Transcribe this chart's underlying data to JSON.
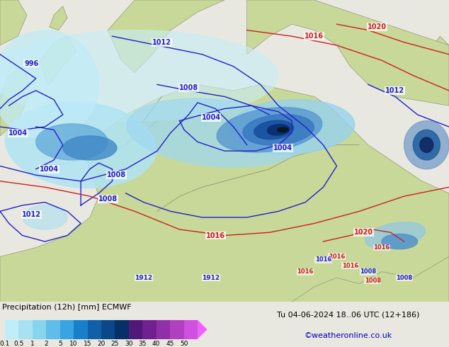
{
  "title_left": "Precipitation (12h) [mm] ECMWF",
  "title_right_line1": "Tu 04-06-2024 18..06 UTC (12+186)",
  "title_right_line2": "©weatheronline.co.uk",
  "colorbar_levels": [
    0.1,
    0.5,
    1,
    2,
    5,
    10,
    15,
    20,
    25,
    30,
    35,
    40,
    45,
    50
  ],
  "colorbar_colors": [
    "#c0eef8",
    "#a8e2f2",
    "#88d4ee",
    "#60bce8",
    "#38a4e0",
    "#1880c8",
    "#1060a8",
    "#0a4888",
    "#083068",
    "#501878",
    "#702090",
    "#9030a8",
    "#b040c0",
    "#d050e0"
  ],
  "sea_color": "#a8ccc0",
  "land_color": "#c8d898",
  "border_color": "#888878",
  "blue_isobar_color": "#2020cc",
  "red_isobar_color": "#cc2020",
  "fig_width": 6.34,
  "fig_height": 4.9,
  "dpi": 100
}
